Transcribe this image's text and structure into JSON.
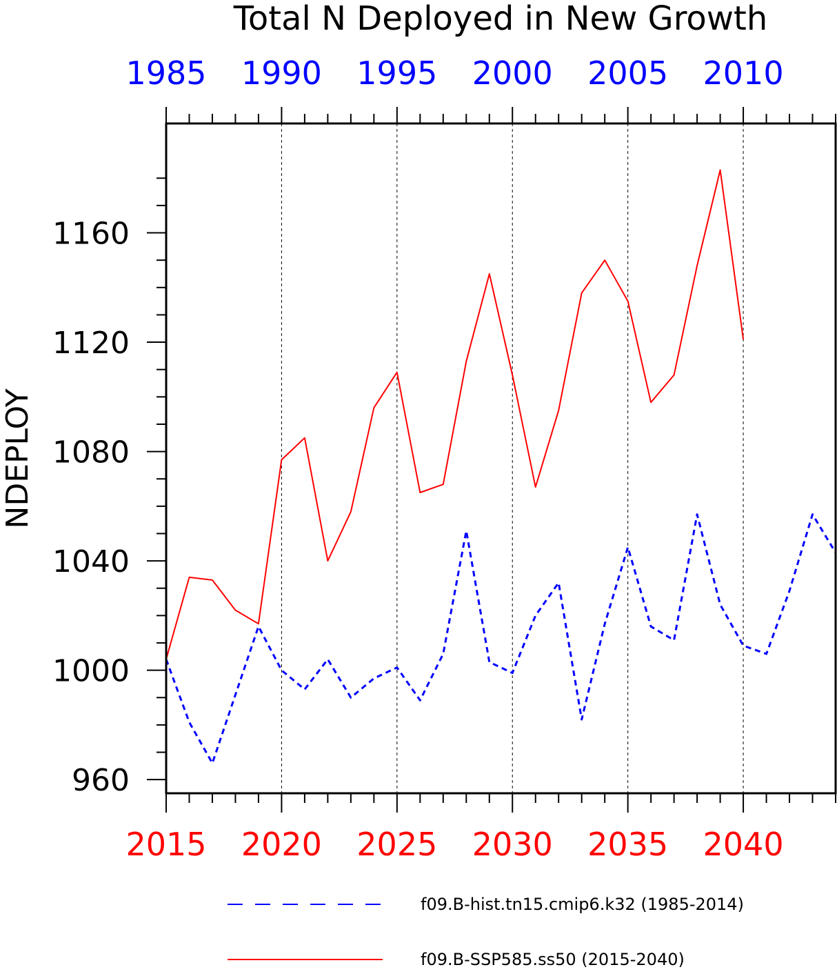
{
  "chart_data": {
    "type": "line",
    "title": "Total N Deployed in New Growth",
    "ylabel": "NDEPLOY",
    "xlabel": "",
    "ylim": [
      955,
      1200
    ],
    "yticks": [
      960,
      1000,
      1040,
      1080,
      1120,
      1160
    ],
    "top_axis": {
      "color": "#0000ff",
      "xlim": [
        1985,
        2014
      ],
      "ticks": [
        "1985",
        "1990",
        "1995",
        "2000",
        "2005",
        "2010"
      ]
    },
    "bottom_axis": {
      "color": "#ff0000",
      "xlim": [
        2015,
        2044
      ],
      "ticks": [
        "2015",
        "2020",
        "2025",
        "2030",
        "2035",
        "2040"
      ]
    },
    "grid": "vertical dashed lines at major ticks",
    "legend_position": "bottom",
    "series": [
      {
        "name": "f09.B-hist.tn15.cmip6.k32 (1985-2014)",
        "axis": "top",
        "color": "#0000ff",
        "style": "dashed",
        "x": [
          1985,
          1986,
          1987,
          1988,
          1989,
          1990,
          1991,
          1992,
          1993,
          1994,
          1995,
          1996,
          1997,
          1998,
          1999,
          2000,
          2001,
          2002,
          2003,
          2004,
          2005,
          2006,
          2007,
          2008,
          2009,
          2010,
          2011,
          2012,
          2013,
          2014
        ],
        "values": [
          1004,
          981,
          966,
          991,
          1016,
          1000,
          993,
          1004,
          990,
          997,
          1001,
          989,
          1006,
          1051,
          1003,
          999,
          1020,
          1032,
          982,
          1017,
          1045,
          1016,
          1011,
          1057,
          1024,
          1009,
          1006,
          1029,
          1057,
          1043
        ]
      },
      {
        "name": "f09.B-SSP585.ss50 (2015-2040)",
        "axis": "bottom",
        "color": "#ff0000",
        "style": "solid",
        "x": [
          2015,
          2016,
          2017,
          2018,
          2019,
          2020,
          2021,
          2022,
          2023,
          2024,
          2025,
          2026,
          2027,
          2028,
          2029,
          2030,
          2031,
          2032,
          2033,
          2034,
          2035,
          2036,
          2037,
          2038,
          2039,
          2040
        ],
        "values": [
          1004,
          1034,
          1033,
          1022,
          1017,
          1077,
          1085,
          1040,
          1058,
          1096,
          1109,
          1065,
          1068,
          1113,
          1145,
          1108,
          1067,
          1095,
          1138,
          1150,
          1135,
          1098,
          1108,
          1148,
          1183,
          1121
        ]
      }
    ]
  }
}
